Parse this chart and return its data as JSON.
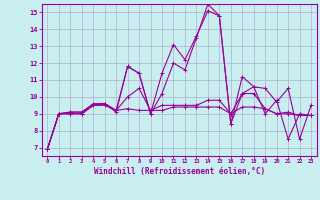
{
  "xlabel": "Windchill (Refroidissement éolien,°C)",
  "background_color": "#c8eef0",
  "grid_color": "#b0b0cc",
  "line_color": "#990099",
  "spine_color": "#990099",
  "xlim": [
    -0.5,
    23.5
  ],
  "ylim": [
    6.5,
    15.5
  ],
  "yticks": [
    7,
    8,
    9,
    10,
    11,
    12,
    13,
    14,
    15
  ],
  "xticks": [
    0,
    1,
    2,
    3,
    4,
    5,
    6,
    7,
    8,
    9,
    10,
    11,
    12,
    13,
    14,
    15,
    16,
    17,
    18,
    19,
    20,
    21,
    22,
    23
  ],
  "series": [
    [
      6.9,
      9.0,
      9.1,
      9.1,
      9.5,
      9.6,
      9.1,
      11.8,
      11.4,
      9.0,
      11.4,
      13.1,
      12.2,
      13.6,
      15.1,
      14.8,
      8.4,
      10.2,
      10.6,
      10.5,
      9.7,
      10.5,
      7.5,
      9.5
    ],
    [
      6.9,
      9.0,
      9.1,
      9.1,
      9.6,
      9.6,
      9.2,
      10.0,
      10.5,
      9.2,
      9.5,
      9.5,
      9.5,
      9.5,
      9.8,
      9.8,
      9.0,
      10.2,
      10.2,
      9.3,
      9.0,
      9.1,
      8.9,
      8.9
    ],
    [
      6.9,
      9.0,
      9.0,
      9.0,
      9.5,
      9.5,
      9.2,
      9.3,
      9.2,
      9.2,
      9.2,
      9.4,
      9.4,
      9.4,
      9.4,
      9.4,
      9.0,
      9.4,
      9.4,
      9.3,
      9.0,
      9.0,
      8.9,
      8.9
    ],
    [
      6.9,
      9.0,
      9.0,
      9.0,
      9.5,
      9.6,
      9.2,
      11.8,
      11.4,
      9.0,
      10.2,
      12.0,
      11.6,
      13.5,
      15.5,
      14.8,
      8.4,
      11.2,
      10.6,
      9.0,
      9.8,
      7.5,
      9.0,
      8.9
    ]
  ]
}
